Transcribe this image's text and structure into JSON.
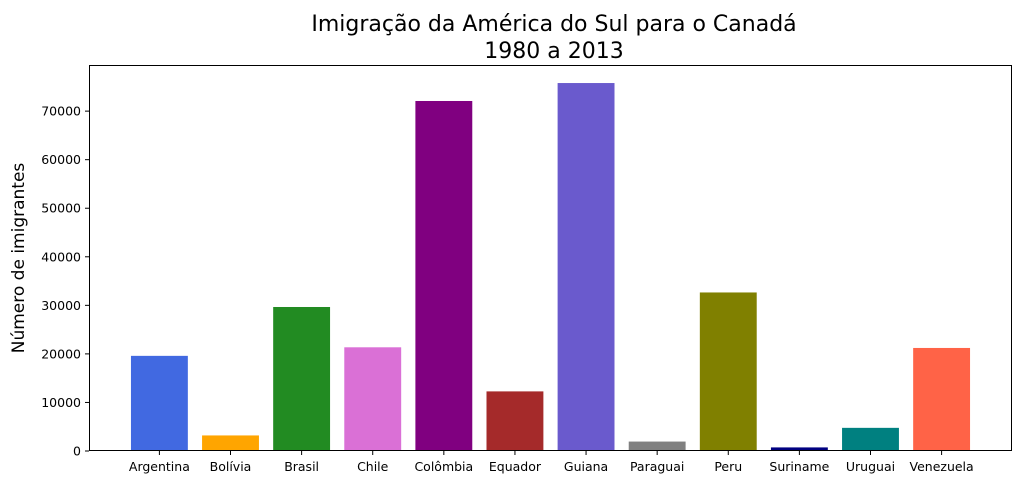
{
  "chart_data": {
    "type": "bar",
    "title": "Imigração da América do Sul para o Canadá",
    "subtitle": "1980 a 2013",
    "xlabel": "",
    "ylabel": "Número de imigrantes",
    "categories": [
      "Argentina",
      "Bolívia",
      "Brasil",
      "Chile",
      "Colômbia",
      "Equador",
      "Guiana",
      "Paraguai",
      "Peru",
      "Suriname",
      "Uruguai",
      "Venezuela"
    ],
    "values": [
      19596,
      3205,
      29659,
      21359,
      72088,
      12277,
      75785,
      1944,
      32652,
      739,
      4769,
      21222
    ],
    "colors": [
      "#4169e1",
      "#ffa500",
      "#228b22",
      "#da70d6",
      "#800080",
      "#a52a2a",
      "#6a5acd",
      "#808080",
      "#808000",
      "#000080",
      "#008080",
      "#ff6347"
    ],
    "yticks": [
      "0",
      "10000",
      "20000",
      "30000",
      "40000",
      "50000",
      "60000",
      "70000"
    ],
    "ylim": [
      0,
      79500
    ],
    "grid": false,
    "legend": "none"
  }
}
